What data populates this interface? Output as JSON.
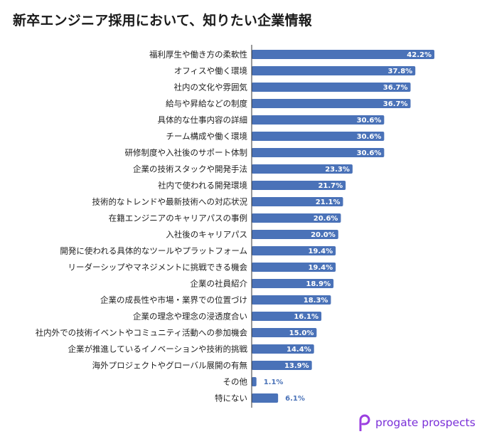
{
  "chart_data": {
    "type": "bar",
    "orientation": "horizontal",
    "title": "新卒エンジニア採用において、知りたい企業情報",
    "xlabel": "",
    "ylabel": "",
    "xlim": [
      0,
      50
    ],
    "grid": false,
    "legend": "none",
    "categories": [
      "福利厚生や働き方の柔軟性",
      "オフィスや働く環境",
      "社内の文化や雰囲気",
      "給与や昇給などの制度",
      "具体的な仕事内容の詳細",
      "チーム構成や働く環境",
      "研修制度や入社後のサポート体制",
      "企業の技術スタックや開発手法",
      "社内で使われる開発環境",
      "技術的なトレンドや最新技術への対応状況",
      "在籍エンジニアのキャリアパスの事例",
      "入社後のキャリアパス",
      "開発に使われる具体的なツールやプラットフォーム",
      "リーダーシップやマネジメントに挑戦できる機会",
      "企業の社員紹介",
      "企業の成長性や市場・業界での位置づけ",
      "企業の理念や理念の浸透度合い",
      "社内外での技術イベントやコミュニティ活動への参加機会",
      "企業が推進しているイノベーションや技術的挑戦",
      "海外プロジェクトやグローバル展開の有無",
      "その他",
      "特にない"
    ],
    "values": [
      42.2,
      37.8,
      36.7,
      36.7,
      30.6,
      30.6,
      30.6,
      23.3,
      21.7,
      21.1,
      20.6,
      20.0,
      19.4,
      19.4,
      18.9,
      18.3,
      16.1,
      15.0,
      14.4,
      13.9,
      1.1,
      6.1
    ],
    "value_labels": [
      "42.2%",
      "37.8%",
      "36.7%",
      "36.7%",
      "30.6%",
      "30.6%",
      "30.6%",
      "23.3%",
      "21.7%",
      "21.1%",
      "20.6%",
      "20.0%",
      "19.4%",
      "19.4%",
      "18.9%",
      "18.3%",
      "16.1%",
      "15.0%",
      "14.4%",
      "13.9%",
      "1.1%",
      "6.1%"
    ]
  },
  "colors": {
    "bar": "#4a72b8",
    "label_inside": "#ffffff",
    "label_outside": "#4a72b8",
    "axis": "#333333",
    "title": "#1a1a1a",
    "brand_mark": "#9b3fe0",
    "brand_text": "#7a2fd8"
  },
  "brand": {
    "name": "progate prospects",
    "icon": "progate-logo-icon"
  }
}
